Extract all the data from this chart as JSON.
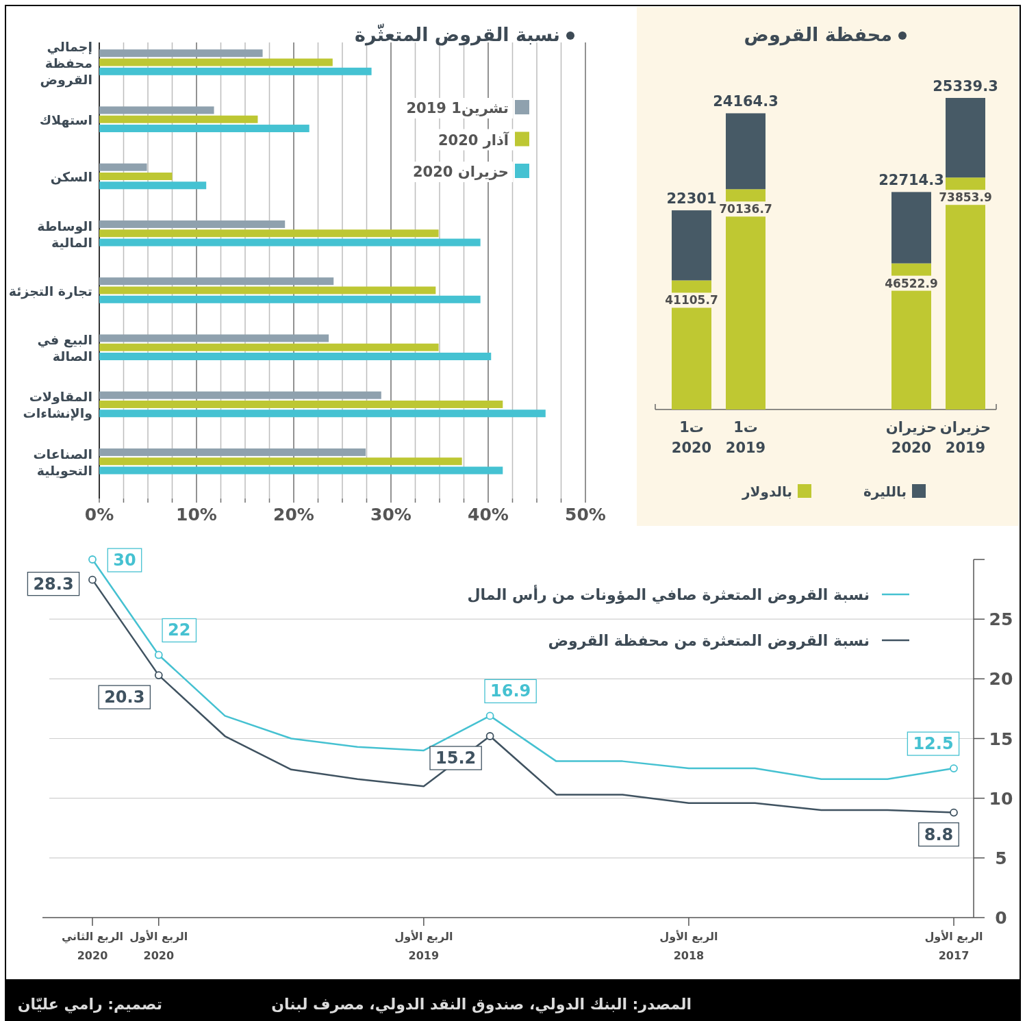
{
  "chart_data": [
    {
      "type": "bar",
      "orientation": "horizontal",
      "title": "نسبة القروض المتعثّرة",
      "categories": [
        "إجمالي\nمحفظة\nالقروض",
        "استهلاك",
        "السكن",
        "الوساطة\nالمالية",
        "تجارة التجزئة",
        "البيع في\nالصالة",
        "المقاولات\nوالإنشاءات",
        "الصناعات\nالتحويلية"
      ],
      "series": [
        {
          "name": "تشرين1 2019",
          "color": "#8fa1ae",
          "values": [
            16.8,
            11.8,
            4.9,
            19.1,
            24.1,
            23.6,
            29.0,
            27.4
          ]
        },
        {
          "name": "آذار 2020",
          "color": "#bdc733",
          "values": [
            24.0,
            16.3,
            7.5,
            34.9,
            34.6,
            34.9,
            41.5,
            37.3
          ]
        },
        {
          "name": "حزيران 2020",
          "color": "#45c2d2",
          "values": [
            28.0,
            21.6,
            11.0,
            39.2,
            39.2,
            40.3,
            45.9,
            41.5
          ]
        }
      ],
      "xlim": [
        0,
        50
      ],
      "xticks": [
        {
          "value": 0,
          "label": "0%"
        },
        {
          "value": 2.5,
          "label": null
        },
        {
          "value": 5,
          "label": null
        },
        {
          "value": 7.5,
          "label": null
        },
        {
          "value": 10,
          "label": "10%"
        },
        {
          "value": 12.5,
          "label": null
        },
        {
          "value": 15,
          "label": null
        },
        {
          "value": 17.5,
          "label": null
        },
        {
          "value": 20,
          "label": "20%"
        },
        {
          "value": 22.5,
          "label": null
        },
        {
          "value": 25,
          "label": null
        },
        {
          "value": 27.5,
          "label": null
        },
        {
          "value": 30,
          "label": "30%"
        },
        {
          "value": 32.5,
          "label": null
        },
        {
          "value": 35,
          "label": null
        },
        {
          "value": 37.5,
          "label": null
        },
        {
          "value": 40,
          "label": "40%"
        },
        {
          "value": 42.5,
          "label": null
        },
        {
          "value": 45,
          "label": null
        },
        {
          "value": 47.5,
          "label": null
        },
        {
          "value": 50,
          "label": "50%"
        }
      ],
      "grid": "x",
      "legend": "top right"
    },
    {
      "type": "bar",
      "stacked": true,
      "title": "محفظة القروض",
      "categories": [
        "ت1\n2020",
        "ت1\n2019",
        "حزيران\n2020",
        "حزيران\n2019"
      ],
      "series": [
        {
          "name": "بالدولار",
          "color": "#bfc832",
          "values": [
            41105.7,
            70136.7,
            46522.9,
            73853.9
          ]
        },
        {
          "name": "بالليرة",
          "color": "#475a66",
          "values": [
            22301,
            24164.3,
            22714.3,
            25339.3
          ]
        }
      ],
      "data_labels": true,
      "legend": "bottom"
    },
    {
      "type": "line",
      "categories": [
        "الربع الثاني\n2020",
        "الربع الأول\n2020",
        null,
        null,
        null,
        "الربع الأول\n2019",
        null,
        null,
        null,
        "الربع الأول\n2018",
        null,
        null,
        null,
        "الربع الأول\n2017"
      ],
      "series": [
        {
          "name": "نسبة القروض المتعثرة صافي المؤونات من رأس المال",
          "color": "#45c1d1",
          "values": [
            30,
            22,
            16.9,
            15.0,
            14.3,
            14.0,
            16.9,
            13.1,
            13.1,
            12.5,
            12.5,
            11.6,
            11.6,
            12.5
          ],
          "value_labels": [
            "30",
            "22",
            null,
            null,
            null,
            null,
            "16.9",
            null,
            null,
            null,
            null,
            null,
            null,
            "12.5"
          ]
        },
        {
          "name": "نسبة القروض المتعثرة من محفظة القروض",
          "color": "#3f5260",
          "values": [
            28.3,
            20.3,
            15.2,
            12.4,
            11.6,
            11.0,
            15.2,
            10.3,
            10.3,
            9.6,
            9.6,
            9.0,
            9.0,
            8.8
          ],
          "value_labels": [
            "28.3",
            "20.3",
            null,
            null,
            null,
            null,
            "15.2",
            null,
            null,
            null,
            null,
            null,
            null,
            "8.8"
          ]
        }
      ],
      "ylim": [
        0,
        30
      ],
      "yticks": [
        0,
        5,
        10,
        15,
        20,
        25,
        {
          "value": 30,
          "label": null
        }
      ],
      "grid": "y",
      "legend": "top right",
      "line_style": "solid",
      "annotations": [
        "المصدر: البنك الدولي، صندوق النقد الدولي، مصرف لبنان",
        "تصميم: رامي عليّان"
      ]
    }
  ]
}
